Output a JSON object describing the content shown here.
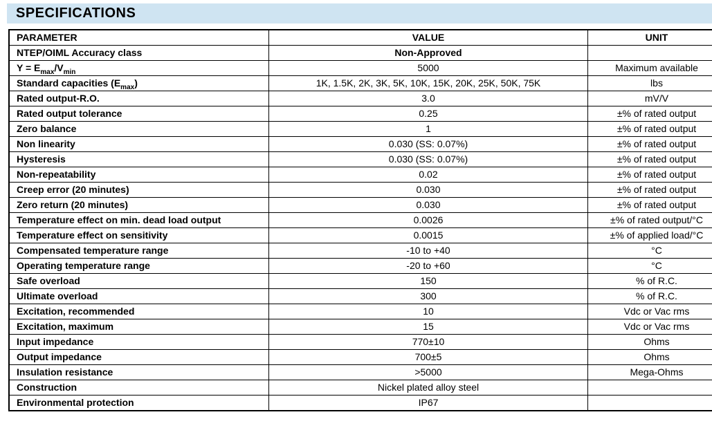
{
  "page": {
    "title": "SPECIFICATIONS",
    "banner_color": "#cfe4f2"
  },
  "table": {
    "columns": [
      "PARAMETER",
      "VALUE",
      "UNIT"
    ],
    "rows": [
      {
        "param": "NTEP/OIML Accuracy class",
        "value": "Non-Approved",
        "unit": "",
        "bold_value": true
      },
      {
        "param": "Y = E_{max}/V_{min}",
        "value": "5000",
        "unit": "Maximum available"
      },
      {
        "param": "Standard capacities (E_{max})",
        "value": "1K, 1.5K, 2K, 3K, 5K, 10K, 15K, 20K, 25K, 50K, 75K",
        "unit": "lbs"
      },
      {
        "param": "Rated output-R.O.",
        "value": "3.0",
        "unit": "mV/V"
      },
      {
        "param": "Rated output tolerance",
        "value": "0.25",
        "unit": "±% of rated output"
      },
      {
        "param": "Zero balance",
        "value": "1",
        "unit": "±% of rated output"
      },
      {
        "param": "Non linearity",
        "value": "0.030 (SS: 0.07%)",
        "unit": "±% of rated output"
      },
      {
        "param": "Hysteresis",
        "value": "0.030 (SS: 0.07%)",
        "unit": "±% of rated output"
      },
      {
        "param": "Non-repeatability",
        "value": "0.02",
        "unit": "±% of rated output"
      },
      {
        "param": "Creep error (20 minutes)",
        "value": "0.030",
        "unit": "±% of rated output"
      },
      {
        "param": "Zero return (20 minutes)",
        "value": "0.030",
        "unit": "±% of rated output"
      },
      {
        "param": "Temperature effect on min. dead load output",
        "value": "0.0026",
        "unit": "±% of rated output/°C"
      },
      {
        "param": "Temperature effect on sensitivity",
        "value": "0.0015",
        "unit": "±% of applied load/°C"
      },
      {
        "param": "Compensated temperature range",
        "value": "-10 to +40",
        "unit": "°C"
      },
      {
        "param": "Operating temperature range",
        "value": "-20 to +60",
        "unit": "°C"
      },
      {
        "param": "Safe overload",
        "value": "150",
        "unit": "% of R.C."
      },
      {
        "param": "Ultimate overload",
        "value": "300",
        "unit": "% of R.C."
      },
      {
        "param": "Excitation, recommended",
        "value": "10",
        "unit": "Vdc or Vac rms"
      },
      {
        "param": "Excitation, maximum",
        "value": "15",
        "unit": "Vdc or Vac rms"
      },
      {
        "param": "Input impedance",
        "value": "770±10",
        "unit": "Ohms"
      },
      {
        "param": "Output impedance",
        "value": "700±5",
        "unit": "Ohms"
      },
      {
        "param": "Insulation resistance",
        "value": ">5000",
        "unit": "Mega-Ohms"
      },
      {
        "param": "Construction",
        "value": "Nickel plated alloy steel",
        "unit": ""
      },
      {
        "param": "Environmental protection",
        "value": "IP67",
        "unit": ""
      }
    ]
  }
}
